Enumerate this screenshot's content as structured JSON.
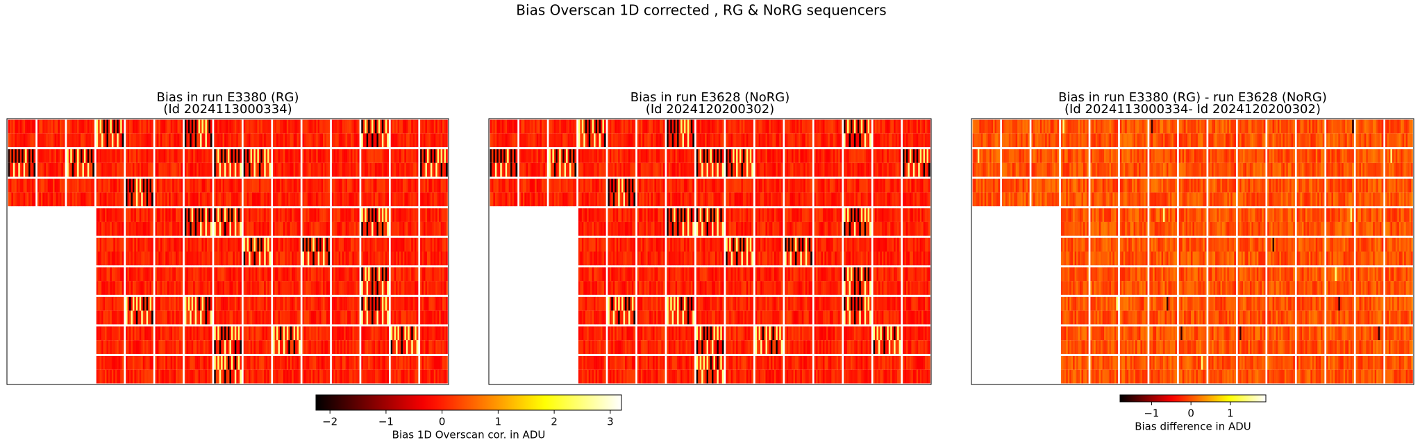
{
  "title": "Bias Overscan 1D corrected , RG & NoRG sequencers",
  "chart_data": [
    {
      "type": "heatmap",
      "title": [
        "Bias in run E3380 (RG)",
        "(Id 2024113000334)"
      ],
      "colormap": "hot",
      "colorbar": {
        "label": "Bias 1D Overscan cor. in ADU",
        "lim": [
          -2.25,
          3.2
        ],
        "ticks": [
          {
            "value": -2,
            "label": "−2"
          },
          {
            "value": -1,
            "label": "−1"
          },
          0,
          1,
          2,
          3
        ]
      }
    },
    {
      "type": "heatmap",
      "title": [
        "Bias in run E3628 (NoRG)",
        "(Id 2024120200302)"
      ],
      "colormap": "hot"
    },
    {
      "type": "heatmap",
      "title": [
        "Bias in run E3380 (RG) - run E3628 (NoRG)",
        "(Id 2024113000334- Id 2024120200302)"
      ],
      "colormap": "hot",
      "colorbar": {
        "label": "Bias difference in ADU",
        "lim": [
          -1.8,
          1.9
        ],
        "ticks": [
          {
            "value": -1,
            "label": "−1"
          },
          0,
          1
        ]
      }
    }
  ]
}
